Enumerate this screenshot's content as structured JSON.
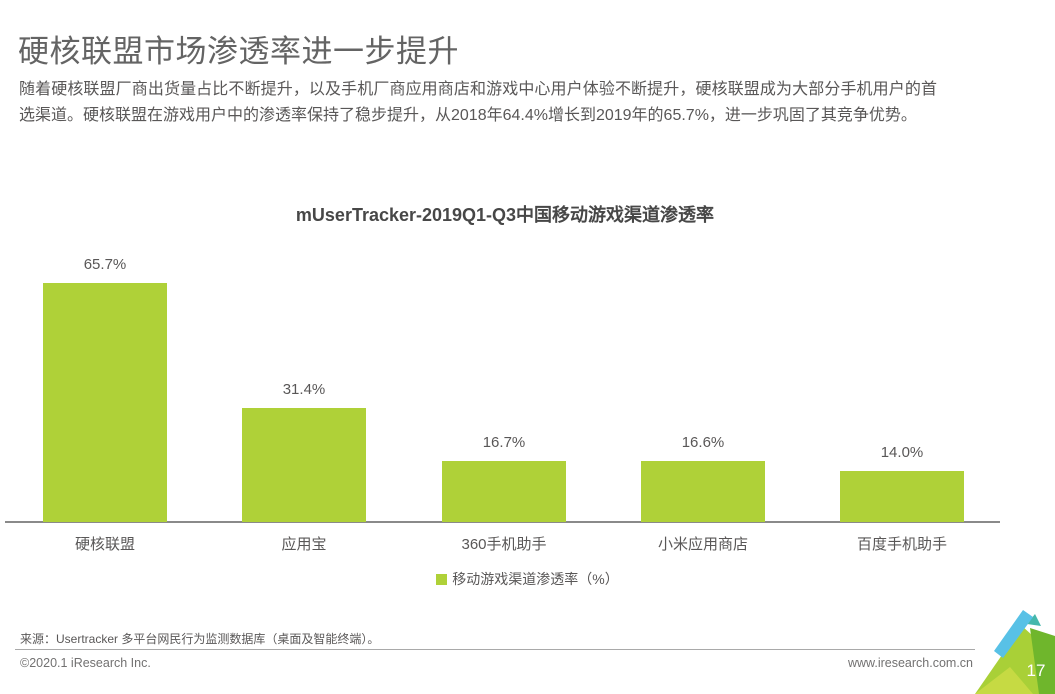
{
  "page": {
    "title": "硬核联盟市场渗透率进一步提升",
    "body": "随着硬核联盟厂商出货量占比不断提升，以及手机厂商应用商店和游戏中心用户体验不断提升，硬核联盟成为大部分手机用户的首选渠道。硬核联盟在游戏用户中的渗透率保持了稳步提升，从2018年64.4%增长到2019年的65.7%，进一步巩固了其竞争优势。"
  },
  "chart_data": {
    "type": "bar",
    "title": "mUserTracker-2019Q1-Q3中国移动游戏渠道渗透率",
    "categories": [
      "硬核联盟",
      "应用宝",
      "360手机助手",
      "小米应用商店",
      "百度手机助手"
    ],
    "values": [
      65.7,
      31.4,
      16.7,
      16.6,
      14.0
    ],
    "value_labels": [
      "65.7%",
      "31.4%",
      "16.7%",
      "16.6%",
      "14.0%"
    ],
    "legend": [
      "移动游戏渠道渗透率（%）"
    ],
    "legend_position": "bottom",
    "bar_color": "#AFD138",
    "axis_line_color": "#8a8a8a",
    "ylim": [
      0,
      70
    ],
    "grid": false,
    "xlabel": "",
    "ylabel": ""
  },
  "footer": {
    "source": "来源：Usertracker 多平台网民行为监测数据库（桌面及智能终端）。",
    "copyright": "©2020.1 iResearch Inc.",
    "website": "www.iresearch.com.cn",
    "page_number": "17"
  },
  "deco_colors": {
    "blue": "#58C1E6",
    "teal": "#45B8AC",
    "lime": "#A9D037",
    "green": "#6FB62C",
    "light_green": "#C6DA43"
  }
}
